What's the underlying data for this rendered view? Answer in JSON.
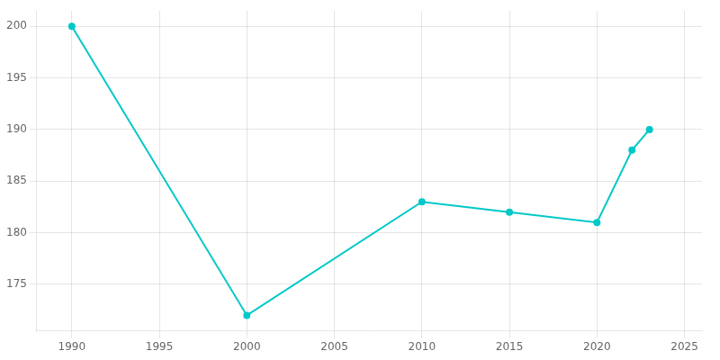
{
  "chart_data": {
    "type": "line",
    "x": [
      1990,
      2000,
      2010,
      2015,
      2020,
      2022,
      2023
    ],
    "values": [
      200,
      172,
      183,
      182,
      181,
      188,
      190
    ],
    "color": "#00c8c8",
    "marker": "circle",
    "xlim": [
      1988,
      2026
    ],
    "ylim": [
      170.5,
      201.5
    ],
    "xticks": [
      1990,
      1995,
      2000,
      2005,
      2010,
      2015,
      2020,
      2025
    ],
    "yticks": [
      175,
      180,
      185,
      190,
      195,
      200
    ],
    "grid": true
  }
}
